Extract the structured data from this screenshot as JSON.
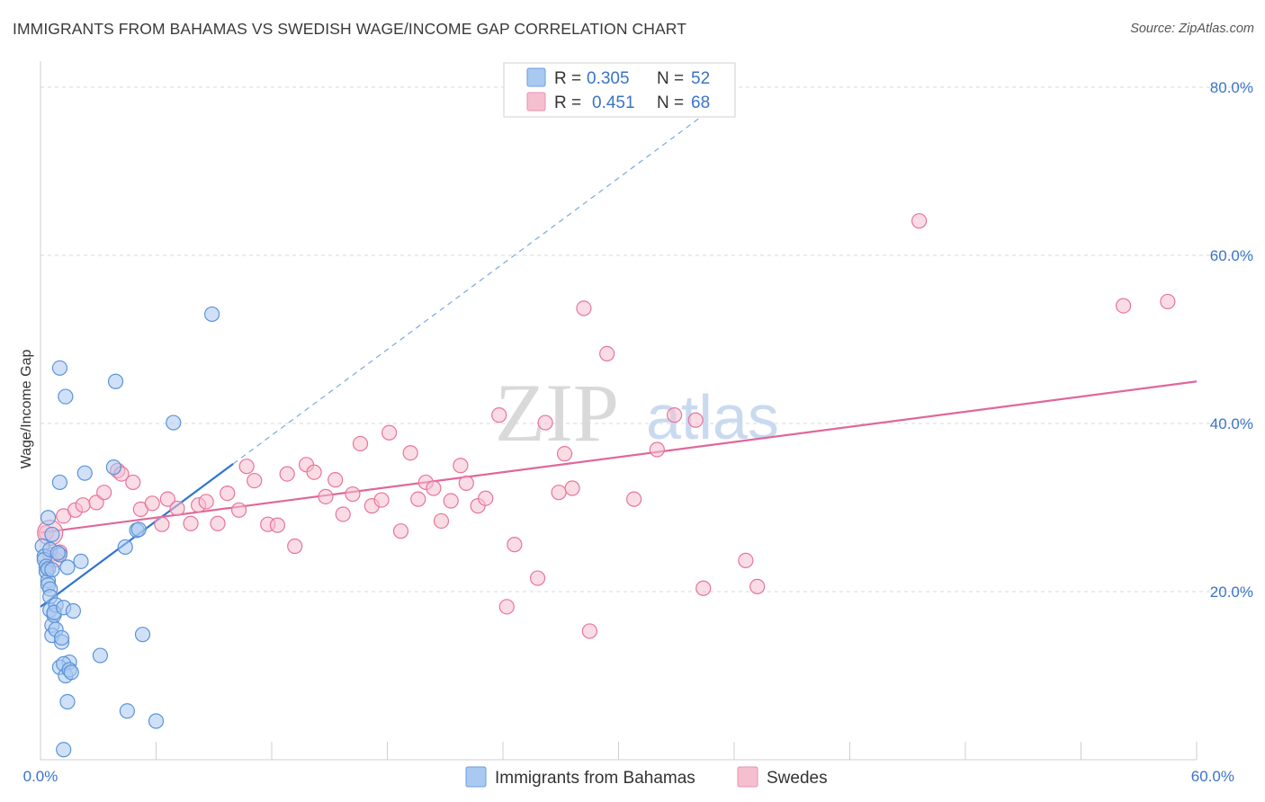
{
  "title": "IMMIGRANTS FROM BAHAMAS VS SWEDISH WAGE/INCOME GAP CORRELATION CHART",
  "source": "Source: ZipAtlas.com",
  "watermark": {
    "zip": "ZIP",
    "atlas": "atlas"
  },
  "colors": {
    "blue": "#5b93d8",
    "blue_fill": "#a9c9f1",
    "pink": "#e8749c",
    "pink_fill": "#f6bfd0",
    "tick": "#3a73c8",
    "grid": "#d8d8d8"
  },
  "legend_top": {
    "rows": [
      {
        "r_label": "R =",
        "r_value": "0.305",
        "n_label": "N =",
        "n_value": "52",
        "color": "blue"
      },
      {
        "r_label": "R =",
        "r_value": "0.451",
        "n_label": "N =",
        "n_value": "68",
        "color": "pink"
      }
    ]
  },
  "legend_bottom": [
    "Immigrants from Bahamas",
    "Swedes"
  ],
  "chart_data": {
    "type": "scatter",
    "title": "IMMIGRANTS FROM BAHAMAS VS SWEDISH WAGE/INCOME GAP CORRELATION CHART",
    "xlabel": "",
    "ylabel": "Wage/Income Gap",
    "xlim": [
      0,
      60
    ],
    "ylim": [
      0,
      80
    ],
    "x_tick_labels": [
      "0.0%",
      "60.0%"
    ],
    "y_ticks": [
      20,
      40,
      60,
      80
    ],
    "y_tick_labels": [
      "20.0%",
      "40.0%",
      "60.0%",
      "80.0%"
    ],
    "grid": true,
    "legend_position": "top-center",
    "series": [
      {
        "name": "Immigrants from Bahamas",
        "r": 0.305,
        "n": 52,
        "trend": {
          "x0": 0.0,
          "y0": 18.2,
          "x1": 10.0,
          "y1": 35.2,
          "extend_to_x": 36.0
        },
        "points": [
          [
            0.1,
            25.4
          ],
          [
            0.2,
            24.2
          ],
          [
            0.2,
            23.8
          ],
          [
            0.3,
            23.0
          ],
          [
            0.3,
            22.4
          ],
          [
            0.4,
            21.3
          ],
          [
            0.4,
            20.8
          ],
          [
            0.5,
            20.3
          ],
          [
            0.5,
            19.4
          ],
          [
            0.4,
            22.7
          ],
          [
            0.5,
            25.0
          ],
          [
            0.4,
            28.8
          ],
          [
            0.6,
            26.8
          ],
          [
            0.5,
            17.8
          ],
          [
            0.6,
            16.0
          ],
          [
            0.7,
            17.2
          ],
          [
            0.8,
            18.4
          ],
          [
            0.7,
            17.5
          ],
          [
            0.6,
            14.8
          ],
          [
            0.8,
            15.5
          ],
          [
            1.0,
            24.4
          ],
          [
            0.9,
            24.6
          ],
          [
            1.0,
            33.0
          ],
          [
            1.0,
            46.6
          ],
          [
            1.1,
            14.0
          ],
          [
            1.1,
            14.5
          ],
          [
            1.2,
            18.1
          ],
          [
            1.3,
            43.2
          ],
          [
            1.4,
            22.9
          ],
          [
            1.5,
            11.6
          ],
          [
            1.0,
            11.0
          ],
          [
            1.2,
            11.4
          ],
          [
            1.3,
            10.0
          ],
          [
            1.5,
            10.7
          ],
          [
            1.6,
            10.4
          ],
          [
            1.4,
            6.9
          ],
          [
            2.1,
            23.6
          ],
          [
            2.3,
            34.1
          ],
          [
            1.7,
            17.7
          ],
          [
            3.1,
            12.4
          ],
          [
            3.8,
            34.8
          ],
          [
            3.9,
            45.0
          ],
          [
            4.4,
            25.3
          ],
          [
            4.5,
            5.8
          ],
          [
            5.0,
            27.3
          ],
          [
            5.1,
            27.4
          ],
          [
            5.3,
            14.9
          ],
          [
            6.0,
            4.6
          ],
          [
            6.9,
            40.1
          ],
          [
            8.9,
            53.0
          ],
          [
            1.2,
            1.2
          ],
          [
            0.6,
            22.6
          ]
        ]
      },
      {
        "name": "Swedes",
        "r": 0.451,
        "n": 68,
        "trend": {
          "x0": 0.0,
          "y0": 27.0,
          "x1": 60.0,
          "y1": 45.0
        },
        "points": [
          [
            0.3,
            27.0
          ],
          [
            0.5,
            24.4
          ],
          [
            0.8,
            23.8
          ],
          [
            1.0,
            24.7
          ],
          [
            1.2,
            29.0
          ],
          [
            1.8,
            29.7
          ],
          [
            2.2,
            30.3
          ],
          [
            2.9,
            30.6
          ],
          [
            3.3,
            31.8
          ],
          [
            4.0,
            34.4
          ],
          [
            4.2,
            34.0
          ],
          [
            4.8,
            33.0
          ],
          [
            5.2,
            29.8
          ],
          [
            5.8,
            30.5
          ],
          [
            6.3,
            28.0
          ],
          [
            6.6,
            31.0
          ],
          [
            7.1,
            29.9
          ],
          [
            7.8,
            28.1
          ],
          [
            8.2,
            30.3
          ],
          [
            8.6,
            30.7
          ],
          [
            9.2,
            28.1
          ],
          [
            9.7,
            31.7
          ],
          [
            10.3,
            29.7
          ],
          [
            10.7,
            34.9
          ],
          [
            11.1,
            33.2
          ],
          [
            11.8,
            28.0
          ],
          [
            12.3,
            27.9
          ],
          [
            12.8,
            34.0
          ],
          [
            13.2,
            25.4
          ],
          [
            13.8,
            35.1
          ],
          [
            14.2,
            34.2
          ],
          [
            14.8,
            31.3
          ],
          [
            15.3,
            33.3
          ],
          [
            15.7,
            29.2
          ],
          [
            16.2,
            31.6
          ],
          [
            16.6,
            37.6
          ],
          [
            17.2,
            30.2
          ],
          [
            17.7,
            30.9
          ],
          [
            18.1,
            38.9
          ],
          [
            18.7,
            27.2
          ],
          [
            19.2,
            36.5
          ],
          [
            19.6,
            31.0
          ],
          [
            20.0,
            33.0
          ],
          [
            20.4,
            32.3
          ],
          [
            20.8,
            28.4
          ],
          [
            21.3,
            30.8
          ],
          [
            21.8,
            35.0
          ],
          [
            22.1,
            32.9
          ],
          [
            22.7,
            30.2
          ],
          [
            23.1,
            31.1
          ],
          [
            23.8,
            41.0
          ],
          [
            24.2,
            18.2
          ],
          [
            24.6,
            25.6
          ],
          [
            25.8,
            21.6
          ],
          [
            26.2,
            40.1
          ],
          [
            26.9,
            31.8
          ],
          [
            27.2,
            36.4
          ],
          [
            27.6,
            32.3
          ],
          [
            28.2,
            53.7
          ],
          [
            28.5,
            15.3
          ],
          [
            29.4,
            48.3
          ],
          [
            30.8,
            31.0
          ],
          [
            32.0,
            36.9
          ],
          [
            32.9,
            41.0
          ],
          [
            34.4,
            20.4
          ],
          [
            36.6,
            23.7
          ],
          [
            37.2,
            20.6
          ],
          [
            45.6,
            64.1
          ]
        ],
        "extra_points": [
          [
            34.0,
            40.4
          ],
          [
            56.2,
            54.0
          ],
          [
            58.5,
            54.5
          ]
        ]
      }
    ]
  }
}
